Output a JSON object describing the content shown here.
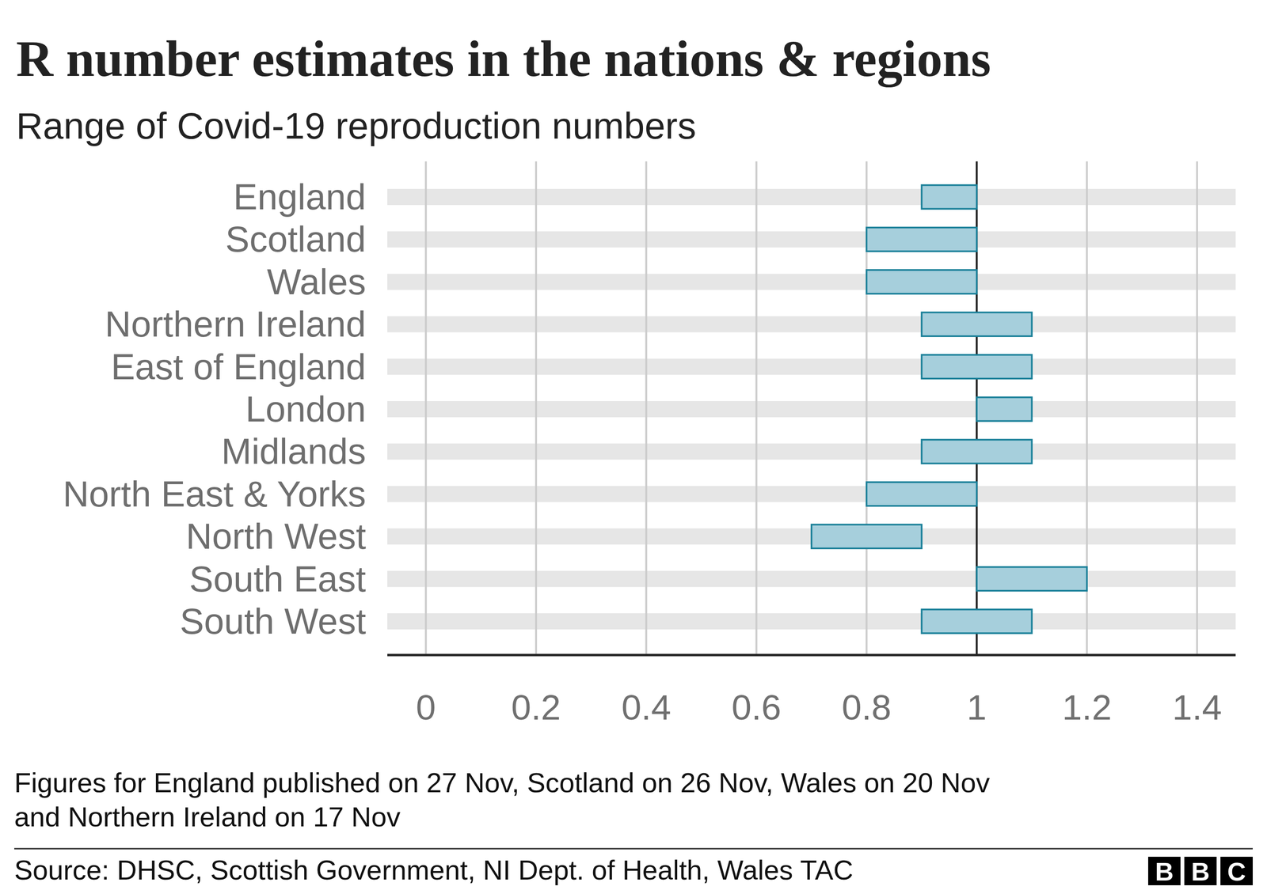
{
  "chart_data": {
    "type": "bar",
    "orientation": "horizontal",
    "title": "R number estimates in the nations & regions",
    "subtitle": "Range of Covid-19 reproduction numbers",
    "categories": [
      "England",
      "Scotland",
      "Wales",
      "Northern Ireland",
      "East of England",
      "London",
      "Midlands",
      "North East & Yorks",
      "North West",
      "South East",
      "South West"
    ],
    "values": [
      [
        0.9,
        1.0
      ],
      [
        0.8,
        1.0
      ],
      [
        0.8,
        1.0
      ],
      [
        0.9,
        1.1
      ],
      [
        0.9,
        1.1
      ],
      [
        1.0,
        1.1
      ],
      [
        0.9,
        1.1
      ],
      [
        0.8,
        1.0
      ],
      [
        0.7,
        0.9
      ],
      [
        1.0,
        1.2
      ],
      [
        0.9,
        1.1
      ]
    ],
    "color": "#a6cfdc",
    "xlim": [
      -0.07,
      1.47
    ],
    "xticks": [
      0,
      0.2,
      0.4,
      0.6,
      0.8,
      1,
      1.2,
      1.4
    ],
    "reference_line": 1,
    "grid": true,
    "note": [
      "Figures for England published on 27 Nov, Scotland on 26 Nov, Wales on 20 Nov",
      "and Northern Ireland on 17 Nov"
    ],
    "source": "Source: DHSC, Scottish Government, NI Dept. of Health, Wales TAC",
    "logo": "BBC"
  }
}
